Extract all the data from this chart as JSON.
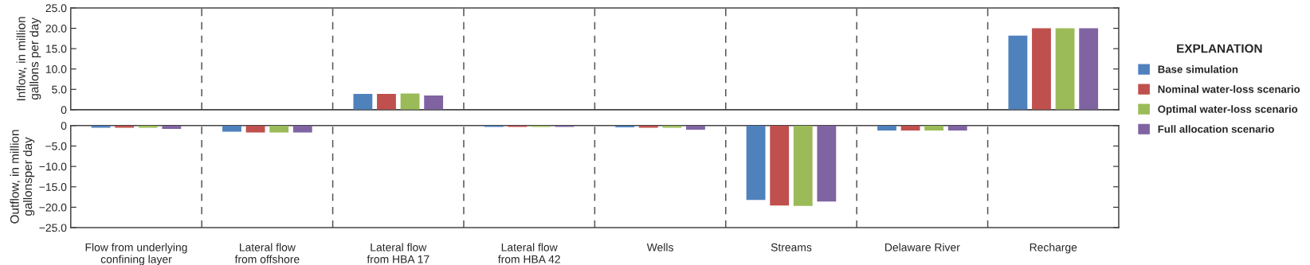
{
  "chart_data": [
    {
      "type": "bar",
      "ylabel": "Inflow, in million\ngallons per day",
      "legend_title": "EXPLANATION",
      "legend": "right",
      "grid": "x",
      "tick_labels": "y",
      "categories": [
        null,
        null,
        null,
        null,
        null,
        null,
        null,
        null
      ],
      "ylim": [
        0,
        25
      ],
      "yticks": [
        0,
        {
          "value": 5,
          "label": "5.0"
        },
        {
          "value": 10,
          "label": "10.0"
        },
        {
          "value": 15,
          "label": "15.0"
        },
        {
          "value": 20,
          "label": "20.0"
        },
        {
          "value": 25,
          "label": "25.0"
        }
      ],
      "series": [
        {
          "name": "Base simulation",
          "color": "#4f81bd",
          "values": [
            null,
            null,
            3.9,
            null,
            null,
            null,
            null,
            18.2
          ]
        },
        {
          "name": "Nominal water-loss scenario",
          "color": "#c0504d",
          "values": [
            null,
            null,
            3.9,
            null,
            null,
            null,
            null,
            20.0
          ]
        },
        {
          "name": "Optimal water-loss scenario",
          "color": "#9bbb59",
          "values": [
            null,
            null,
            4.0,
            null,
            null,
            null,
            null,
            20.0
          ]
        },
        {
          "name": "Full allocation scenario",
          "color": "#8064a2",
          "values": [
            null,
            null,
            3.5,
            null,
            null,
            null,
            null,
            20.0
          ]
        }
      ]
    },
    {
      "type": "bar",
      "ylabel": "Outflow, in million\ngallonsper day",
      "grid": "x",
      "categories": [
        "Flow from underlying\nconfining layer",
        "Lateral flow\nfrom offshore",
        "Lateral flow\nfrom HBA 17",
        "Lateral flow\nfrom HBA 42",
        "Wells",
        "Streams",
        "Delaware River",
        "Recharge"
      ],
      "ylim": [
        -25,
        0
      ],
      "yticks": [
        {
          "value": -25,
          "label": "−25.0"
        },
        {
          "value": -20,
          "label": "−20.0"
        },
        {
          "value": -15,
          "label": "−15.0"
        },
        {
          "value": -10,
          "label": "−10.0"
        },
        {
          "value": -5,
          "label": "−5.0"
        },
        0
      ],
      "series": [
        {
          "color": "#4f81bd",
          "values": [
            -0.5,
            -1.5,
            null,
            -0.3,
            -0.4,
            -18.2,
            -1.2,
            null
          ]
        },
        {
          "color": "#c0504d",
          "values": [
            -0.5,
            -1.7,
            null,
            -0.3,
            -0.5,
            -19.6,
            -1.2,
            null
          ]
        },
        {
          "color": "#9bbb59",
          "values": [
            -0.5,
            -1.7,
            null,
            -0.3,
            -0.5,
            -19.7,
            -1.2,
            null
          ]
        },
        {
          "color": "#8064a2",
          "values": [
            -0.8,
            -1.7,
            null,
            -0.3,
            -1.0,
            -18.6,
            -1.2,
            null
          ]
        }
      ]
    }
  ]
}
